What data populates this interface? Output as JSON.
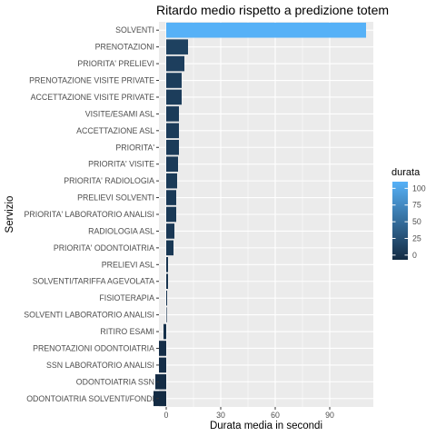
{
  "chart_data": {
    "type": "bar",
    "orientation": "horizontal",
    "title": "Ritardo medio rispetto a predizione totem",
    "xlabel": "Durata media in secondi",
    "ylabel": "Servizio",
    "xlim": [
      -4,
      114
    ],
    "x_ticks": [
      0,
      30,
      60,
      90
    ],
    "grid": true,
    "categories": [
      "SOLVENTI",
      "PRENOTAZIONI",
      "PRIORITA' PRELIEVI",
      "PRENOTAZIONE VISITE PRIVATE",
      "ACCETTAZIONE VISITE PRIVATE",
      "VISITE/ESAMI ASL",
      "ACCETTAZIONE ASL",
      "PRIORITA'",
      "PRIORITA' VISITE",
      "PRIORITA' RADIOLOGIA",
      "PRELIEVI SOLVENTI",
      "PRIORITA' LABORATORIO ANALISI",
      "RADIOLOGIA ASL",
      "PRIORITA' ODONTOIATRIA",
      "PRELIEVI ASL",
      "SOLVENTI/TARIFFA AGEVOLATA",
      "FISIOTERAPIA",
      "SOLVENTI LABORATORIO ANALISI",
      "RITIRO ESAMI",
      "PRENOTAZIONI ODONTOIATRIA",
      "SSN LABORATORIO ANALISI",
      "ODONTOIATRIA SSN",
      "ODONTOIATRIA SOLVENTI/FONDI"
    ],
    "values": [
      110,
      12,
      10,
      8.5,
      8.5,
      7,
      7,
      7,
      6.5,
      6,
      5.5,
      5.5,
      4.5,
      4,
      1,
      1,
      0.5,
      0,
      -1.5,
      -4,
      -4,
      -6,
      -7
    ],
    "legend": {
      "title": "durata",
      "position": "right",
      "ticks": [
        0,
        25,
        50,
        75,
        100
      ],
      "color_low": "#132B43",
      "color_high": "#56B1F7",
      "range": [
        -7,
        110
      ]
    },
    "colors": {
      "panel_background": "#EBEBEB",
      "grid_major": "#FFFFFF"
    }
  }
}
